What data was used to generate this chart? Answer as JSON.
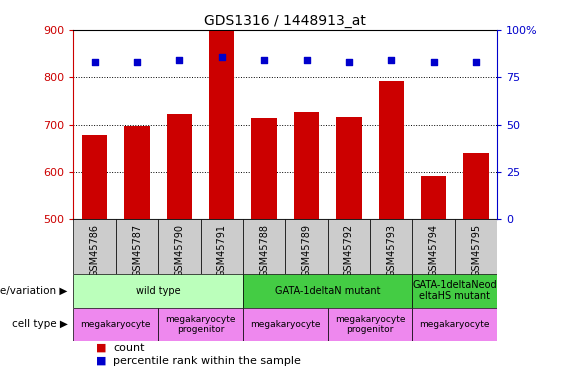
{
  "title": "GDS1316 / 1448913_at",
  "samples": [
    "GSM45786",
    "GSM45787",
    "GSM45790",
    "GSM45791",
    "GSM45788",
    "GSM45789",
    "GSM45792",
    "GSM45793",
    "GSM45794",
    "GSM45795"
  ],
  "counts": [
    678,
    697,
    722,
    898,
    715,
    727,
    717,
    793,
    592,
    641
  ],
  "percentiles": [
    83,
    83,
    84,
    86,
    84,
    84,
    83,
    84,
    83,
    83
  ],
  "ylim_left": [
    500,
    900
  ],
  "ylim_right": [
    0,
    100
  ],
  "yticks_left": [
    500,
    600,
    700,
    800,
    900
  ],
  "yticks_right": [
    0,
    25,
    50,
    75,
    100
  ],
  "ytick_right_labels": [
    "0",
    "25",
    "50",
    "75",
    "100%"
  ],
  "bar_color": "#cc0000",
  "dot_color": "#0000cc",
  "grid_color": "#000000",
  "bg_color": "#ffffff",
  "geno_color_light": "#bbffbb",
  "geno_color_dark": "#44cc44",
  "cell_color": "#ee88ee",
  "genotype_label": "genotype/variation",
  "cell_type_label": "cell type",
  "legend_count_label": "count",
  "legend_percentile_label": "percentile rank within the sample",
  "geno_data": [
    {
      "label": "wild type",
      "start": 0,
      "end": 4,
      "color": "#bbffbb"
    },
    {
      "label": "GATA-1deltaN mutant",
      "start": 4,
      "end": 8,
      "color": "#44cc44"
    },
    {
      "label": "GATA-1deltaNeod\neltaHS mutant",
      "start": 8,
      "end": 10,
      "color": "#44cc44"
    }
  ],
  "cell_data": [
    {
      "label": "megakaryocyte",
      "start": 0,
      "end": 2
    },
    {
      "label": "megakaryocyte\nprogenitor",
      "start": 2,
      "end": 4
    },
    {
      "label": "megakaryocyte",
      "start": 4,
      "end": 6
    },
    {
      "label": "megakaryocyte\nprogenitor",
      "start": 6,
      "end": 8
    },
    {
      "label": "megakaryocyte",
      "start": 8,
      "end": 10
    }
  ]
}
